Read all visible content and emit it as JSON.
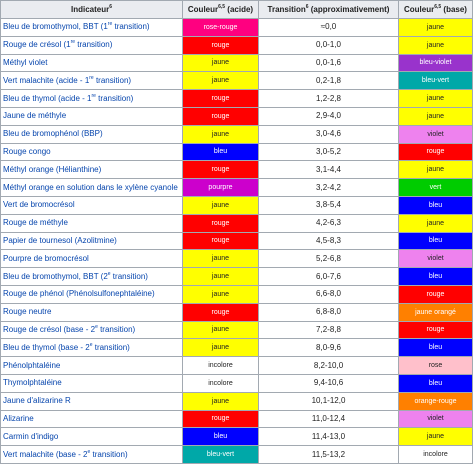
{
  "header": {
    "indicator": "Indicateur",
    "indicator_sup": "6",
    "acid": "Couleur",
    "acid_sup": "6,5",
    "acid_suffix": " (acide)",
    "transition": "Transition",
    "transition_sup": "6",
    "transition_suffix": " (approximativement)",
    "base": "Couleur",
    "base_sup": "6,5",
    "base_suffix": " (base)"
  },
  "colors": {
    "rose_vif": "#ff0080",
    "rouge": "#ff0000",
    "jaune": "#ffff00",
    "bleu_vert": "#00a8a8",
    "bleu": "#0000ff",
    "violet": "#9933cc",
    "violet_pale": "#ee82ee",
    "pourpre": "#cc00cc",
    "vert": "#00cc00",
    "orange": "#ff8000",
    "rose": "#ffc0cb",
    "blanc": "#ffffff"
  },
  "rows": [
    {
      "name": "Bleu de bromothymol, BBT (1",
      "name_sup": "re",
      "name_suffix": " transition)",
      "acid": "rose-rouge",
      "acid_color": "#ff0080",
      "transition": "≈0,0",
      "base": "jaune",
      "base_color": "#ffff00"
    },
    {
      "name": "Rouge de crésol (1",
      "name_sup": "re",
      "name_suffix": " transition)",
      "acid": "rouge",
      "acid_color": "#ff0000",
      "transition": "0,0-1,0",
      "base": "jaune",
      "base_color": "#ffff00"
    },
    {
      "name": "Méthyl violet",
      "acid": "jaune",
      "acid_color": "#ffff00",
      "transition": "0,0-1,6",
      "base": "bleu-violet",
      "base_color": "#9933cc"
    },
    {
      "name": "Vert malachite (acide - 1",
      "name_sup": "re",
      "name_suffix": " transition)",
      "acid": "jaune",
      "acid_color": "#ffff00",
      "transition": "0,2-1,8",
      "base": "bleu-vert",
      "base_color": "#00a8a8"
    },
    {
      "name": "Bleu de thymol (acide - 1",
      "name_sup": "re",
      "name_suffix": " transition)",
      "acid": "rouge",
      "acid_color": "#ff0000",
      "transition": "1,2-2,8",
      "base": "jaune",
      "base_color": "#ffff00"
    },
    {
      "name": "Jaune de méthyle",
      "acid": "rouge",
      "acid_color": "#ff0000",
      "transition": "2,9-4,0",
      "base": "jaune",
      "base_color": "#ffff00"
    },
    {
      "name": "Bleu de bromophénol (BBP)",
      "acid": "jaune",
      "acid_color": "#ffff00",
      "transition": "3,0-4,6",
      "base": "violet",
      "base_color": "#ee82ee"
    },
    {
      "name": "Rouge congo",
      "acid": "bleu",
      "acid_color": "#0000ff",
      "transition": "3,0-5,2",
      "base": "rouge",
      "base_color": "#ff0000"
    },
    {
      "name": "Méthyl orange (Hélianthine)",
      "acid": "rouge",
      "acid_color": "#ff0000",
      "transition": "3,1-4,4",
      "base": "jaune",
      "base_color": "#ffff00"
    },
    {
      "name": "Méthyl orange en solution dans le xylène cyanole",
      "acid": "pourpre",
      "acid_color": "#cc00cc",
      "transition": "3,2-4,2",
      "base": "vert",
      "base_color": "#00cc00"
    },
    {
      "name": "Vert de bromocrésol",
      "acid": "jaune",
      "acid_color": "#ffff00",
      "transition": "3,8-5,4",
      "base": "bleu",
      "base_color": "#0000ff"
    },
    {
      "name": "Rouge de méthyle",
      "acid": "rouge",
      "acid_color": "#ff0000",
      "transition": "4,2-6,3",
      "base": "jaune",
      "base_color": "#ffff00"
    },
    {
      "name": "Papier de tournesol (Azolitmine)",
      "acid": "rouge",
      "acid_color": "#ff0000",
      "transition": "4,5-8,3",
      "base": "bleu",
      "base_color": "#0000ff"
    },
    {
      "name": "Pourpre de bromocrésol",
      "acid": "jaune",
      "acid_color": "#ffff00",
      "transition": "5,2-6,8",
      "base": "violet",
      "base_color": "#ee82ee"
    },
    {
      "name": "Bleu de bromothymol, BBT (2",
      "name_sup": "e",
      "name_suffix": " transition)",
      "acid": "jaune",
      "acid_color": "#ffff00",
      "transition": "6,0-7,6",
      "base": "bleu",
      "base_color": "#0000ff"
    },
    {
      "name": "Rouge de phénol (Phénolsulfonephtaléine)",
      "acid": "jaune",
      "acid_color": "#ffff00",
      "transition": "6,6-8,0",
      "base": "rouge",
      "base_color": "#ff0000"
    },
    {
      "name": "Rouge neutre",
      "acid": "rouge",
      "acid_color": "#ff0000",
      "transition": "6,8-8,0",
      "base": "jaune orangé",
      "base_color": "#ff8000"
    },
    {
      "name": "Rouge de crésol (base - 2",
      "name_sup": "e",
      "name_suffix": " transition)",
      "acid": "jaune",
      "acid_color": "#ffff00",
      "transition": "7,2-8,8",
      "base": "rouge",
      "base_color": "#ff0000"
    },
    {
      "name": "Bleu de thymol (base - 2",
      "name_sup": "e",
      "name_suffix": " transition)",
      "acid": "jaune",
      "acid_color": "#ffff00",
      "transition": "8,0-9,6",
      "base": "bleu",
      "base_color": "#0000ff"
    },
    {
      "name": "Phénolphtaléine",
      "acid": "incolore",
      "acid_color": "#ffffff",
      "transition": "8,2-10,0",
      "base": "rose",
      "base_color": "#ffc0cb"
    },
    {
      "name": "Thymolphtaléine",
      "acid": "incolore",
      "acid_color": "#ffffff",
      "transition": "9,4-10,6",
      "base": "bleu",
      "base_color": "#0000ff"
    },
    {
      "name": "Jaune d'alizarine R",
      "acid": "jaune",
      "acid_color": "#ffff00",
      "transition": "10,1-12,0",
      "base": "orange-rouge",
      "base_color": "#ff8000"
    },
    {
      "name": "Alizarine",
      "acid": "rouge",
      "acid_color": "#ff0000",
      "transition": "11,0-12,4",
      "base": "violet",
      "base_color": "#ee82ee"
    },
    {
      "name": "Carmin d'indigo",
      "acid": "bleu",
      "acid_color": "#0000ff",
      "transition": "11,4-13,0",
      "base": "jaune",
      "base_color": "#ffff00"
    },
    {
      "name": "Vert malachite (base - 2",
      "name_sup": "e",
      "name_suffix": " transition)",
      "acid": "bleu-vert",
      "acid_color": "#00a8a8",
      "transition": "11,5-13,2",
      "base": "incolore",
      "base_color": "#ffffff"
    }
  ]
}
